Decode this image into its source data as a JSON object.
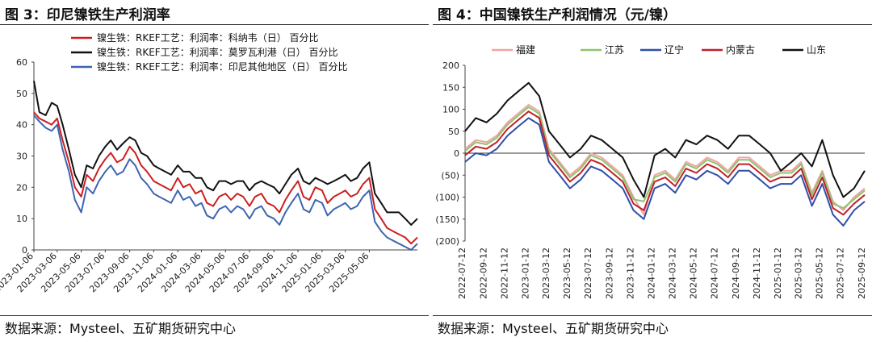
{
  "left": {
    "title": "图 3：印尼镍铁生产利润率",
    "source": "数据来源：Mysteel、五矿期货研究中心",
    "chart_data": {
      "type": "line",
      "ylim": [
        0,
        60
      ],
      "yticks": [
        0,
        10,
        20,
        30,
        40,
        50,
        60
      ],
      "xlim": [
        "2023-01-06",
        "2025-09-05"
      ],
      "xticks": [
        "2023-01-06",
        "2023-03-06",
        "2023-05-06",
        "2023-07-06",
        "2023-09-06",
        "2023-11-06",
        "2024-01-06",
        "2024-03-06",
        "2024-05-06",
        "2024-07-06",
        "2024-09-06",
        "2024-11-06",
        "2025-01-06",
        "2025-03-06",
        "2025-05-06"
      ],
      "legend_position": "top-left",
      "series": [
        {
          "name": "镍生铁：RKEF工艺：利润率：科纳韦（日） 百分比",
          "color": "#cc1f1f",
          "x": [
            "2023-01-06",
            "2023-01-20",
            "2023-02-05",
            "2023-02-20",
            "2023-03-06",
            "2023-03-20",
            "2023-04-05",
            "2023-04-20",
            "2023-05-06",
            "2023-05-20",
            "2023-06-05",
            "2023-06-20",
            "2023-07-06",
            "2023-07-20",
            "2023-08-05",
            "2023-08-20",
            "2023-09-06",
            "2023-09-20",
            "2023-10-05",
            "2023-10-20",
            "2023-11-06",
            "2023-11-20",
            "2023-12-05",
            "2023-12-20",
            "2024-01-06",
            "2024-01-20",
            "2024-02-05",
            "2024-02-20",
            "2024-03-06",
            "2024-03-20",
            "2024-04-05",
            "2024-04-20",
            "2024-05-06",
            "2024-05-20",
            "2024-06-05",
            "2024-06-20",
            "2024-07-06",
            "2024-07-20",
            "2024-08-05",
            "2024-08-20",
            "2024-09-06",
            "2024-09-20",
            "2024-10-05",
            "2024-10-20",
            "2024-11-06",
            "2024-11-20",
            "2024-12-05",
            "2024-12-20",
            "2025-01-06",
            "2025-01-20",
            "2025-02-05",
            "2025-02-20",
            "2025-03-06",
            "2025-03-20",
            "2025-04-05",
            "2025-04-20",
            "2025-05-06",
            "2025-05-20",
            "2025-06-05",
            "2025-06-20",
            "2025-07-05",
            "2025-07-20",
            "2025-08-05",
            "2025-08-20",
            "2025-09-05"
          ],
          "values": [
            44,
            42,
            41,
            40,
            42,
            35,
            28,
            20,
            17,
            24,
            22,
            26,
            29,
            31,
            28,
            29,
            33,
            31,
            27,
            25,
            22,
            21,
            20,
            19,
            23,
            20,
            21,
            18,
            19,
            15,
            14,
            17,
            18,
            16,
            18,
            17,
            14,
            17,
            18,
            15,
            14,
            12,
            16,
            19,
            22,
            17,
            16,
            20,
            19,
            15,
            17,
            18,
            19,
            17,
            18,
            21,
            23,
            13,
            10,
            7,
            6,
            5,
            4,
            2,
            4
          ]
        },
        {
          "name": "镍生铁：RKEF工艺：利润率：莫罗瓦利港（日） 百分比",
          "color": "#111111",
          "x": [
            "2023-01-06",
            "2023-01-20",
            "2023-02-05",
            "2023-02-20",
            "2023-03-06",
            "2023-03-20",
            "2023-04-05",
            "2023-04-20",
            "2023-05-06",
            "2023-05-20",
            "2023-06-05",
            "2023-06-20",
            "2023-07-06",
            "2023-07-20",
            "2023-08-05",
            "2023-08-20",
            "2023-09-06",
            "2023-09-20",
            "2023-10-05",
            "2023-10-20",
            "2023-11-06",
            "2023-11-20",
            "2023-12-05",
            "2023-12-20",
            "2024-01-06",
            "2024-01-20",
            "2024-02-05",
            "2024-02-20",
            "2024-03-06",
            "2024-03-20",
            "2024-04-05",
            "2024-04-20",
            "2024-05-06",
            "2024-05-20",
            "2024-06-05",
            "2024-06-20",
            "2024-07-06",
            "2024-07-20",
            "2024-08-05",
            "2024-08-20",
            "2024-09-06",
            "2024-09-20",
            "2024-10-05",
            "2024-10-20",
            "2024-11-06",
            "2024-11-20",
            "2024-12-05",
            "2024-12-20",
            "2025-01-06",
            "2025-01-20",
            "2025-02-05",
            "2025-02-20",
            "2025-03-06",
            "2025-03-20",
            "2025-04-05",
            "2025-04-20",
            "2025-05-06",
            "2025-05-20",
            "2025-06-05",
            "2025-06-20",
            "2025-07-05",
            "2025-07-20",
            "2025-08-05",
            "2025-08-20",
            "2025-09-05"
          ],
          "values": [
            54,
            44,
            43,
            47,
            46,
            40,
            32,
            24,
            20,
            27,
            26,
            30,
            33,
            35,
            32,
            34,
            36,
            35,
            31,
            30,
            27,
            26,
            25,
            24,
            27,
            25,
            25,
            23,
            23,
            20,
            19,
            22,
            22,
            21,
            22,
            22,
            19,
            21,
            22,
            21,
            20,
            18,
            21,
            24,
            26,
            22,
            21,
            23,
            22,
            21,
            22,
            23,
            24,
            22,
            23,
            26,
            28,
            18,
            15,
            12,
            12,
            12,
            10,
            8,
            10
          ]
        },
        {
          "name": "镍生铁：RKEF工艺：利润率：印尼其他地区（日） 百分比",
          "color": "#3e64b2",
          "x": [
            "2023-01-06",
            "2023-01-20",
            "2023-02-05",
            "2023-02-20",
            "2023-03-06",
            "2023-03-20",
            "2023-04-05",
            "2023-04-20",
            "2023-05-06",
            "2023-05-20",
            "2023-06-05",
            "2023-06-20",
            "2023-07-06",
            "2023-07-20",
            "2023-08-05",
            "2023-08-20",
            "2023-09-06",
            "2023-09-20",
            "2023-10-05",
            "2023-10-20",
            "2023-11-06",
            "2023-11-20",
            "2023-12-05",
            "2023-12-20",
            "2024-01-06",
            "2024-01-20",
            "2024-02-05",
            "2024-02-20",
            "2024-03-06",
            "2024-03-20",
            "2024-04-05",
            "2024-04-20",
            "2024-05-06",
            "2024-05-20",
            "2024-06-05",
            "2024-06-20",
            "2024-07-06",
            "2024-07-20",
            "2024-08-05",
            "2024-08-20",
            "2024-09-06",
            "2024-09-20",
            "2024-10-05",
            "2024-10-20",
            "2024-11-06",
            "2024-11-20",
            "2024-12-05",
            "2024-12-20",
            "2025-01-06",
            "2025-01-20",
            "2025-02-05",
            "2025-02-20",
            "2025-03-06",
            "2025-03-20",
            "2025-04-05",
            "2025-04-20",
            "2025-05-06",
            "2025-05-20",
            "2025-06-05",
            "2025-06-20",
            "2025-07-05",
            "2025-07-20",
            "2025-08-05",
            "2025-08-20",
            "2025-09-05"
          ],
          "values": [
            43,
            41,
            39,
            38,
            40,
            32,
            25,
            16,
            12,
            20,
            18,
            22,
            25,
            27,
            24,
            25,
            29,
            27,
            23,
            21,
            18,
            17,
            16,
            15,
            19,
            16,
            17,
            14,
            15,
            11,
            10,
            13,
            14,
            12,
            14,
            13,
            10,
            13,
            14,
            11,
            10,
            8,
            12,
            15,
            18,
            13,
            12,
            16,
            15,
            11,
            13,
            14,
            15,
            13,
            14,
            17,
            19,
            9,
            6,
            4,
            3,
            2,
            1,
            0,
            2
          ]
        }
      ]
    }
  },
  "right": {
    "title": "图 4：中国镍铁生产利润情况（元/镍）",
    "source": "数据来源：Mysteel、五矿期货研究中心",
    "chart_data": {
      "type": "line",
      "ylim": [
        -200,
        200
      ],
      "yticks": [
        200,
        150,
        100,
        50,
        0,
        -50,
        -100,
        -150,
        -200
      ],
      "ytick_labels": [
        "200",
        "150",
        "100",
        "50",
        "0",
        "(50)",
        "(100)",
        "(150)",
        "(200)"
      ],
      "xlim": [
        "2022-07-12",
        "2025-09-12"
      ],
      "xticks": [
        "2022-07-12",
        "2022-09-12",
        "2022-11-12",
        "2023-01-12",
        "2023-03-12",
        "2023-05-12",
        "2023-07-12",
        "2023-09-12",
        "2023-11-12",
        "2024-01-12",
        "2024-03-12",
        "2024-05-12",
        "2024-07-12",
        "2024-09-12",
        "2024-11-12",
        "2025-01-12",
        "2025-03-12",
        "2025-05-12",
        "2025-07-12",
        "2025-09-12"
      ],
      "legend_position": "top",
      "series": [
        {
          "name": "福建",
          "color": "#f2a3a3",
          "x": [
            "2022-07-12",
            "2022-08-12",
            "2022-09-12",
            "2022-10-12",
            "2022-11-12",
            "2022-12-12",
            "2023-01-12",
            "2023-02-12",
            "2023-03-12",
            "2023-04-12",
            "2023-05-12",
            "2023-06-12",
            "2023-07-12",
            "2023-08-12",
            "2023-09-12",
            "2023-10-12",
            "2023-11-12",
            "2023-12-12",
            "2024-01-12",
            "2024-02-12",
            "2024-03-12",
            "2024-04-12",
            "2024-05-12",
            "2024-06-12",
            "2024-07-12",
            "2024-08-12",
            "2024-09-12",
            "2024-10-12",
            "2024-11-12",
            "2024-12-12",
            "2025-01-12",
            "2025-02-12",
            "2025-03-12",
            "2025-04-12",
            "2025-05-12",
            "2025-06-12",
            "2025-07-12",
            "2025-08-12",
            "2025-09-12"
          ],
          "values": [
            10,
            30,
            25,
            40,
            70,
            90,
            110,
            95,
            10,
            -20,
            -50,
            -30,
            0,
            -10,
            -30,
            -50,
            -100,
            -140,
            -50,
            -40,
            -60,
            -20,
            -30,
            -10,
            -20,
            -40,
            -10,
            -10,
            -30,
            -50,
            -40,
            -40,
            -20,
            -90,
            -40,
            -110,
            -130,
            -100,
            -80
          ]
        },
        {
          "name": "江苏",
          "color": "#8dc46f",
          "x": [
            "2022-07-12",
            "2022-08-12",
            "2022-09-12",
            "2022-10-12",
            "2022-11-12",
            "2022-12-12",
            "2023-01-12",
            "2023-02-12",
            "2023-03-12",
            "2023-04-12",
            "2023-05-12",
            "2023-06-12",
            "2023-07-12",
            "2023-08-12",
            "2023-09-12",
            "2023-10-12",
            "2023-11-12",
            "2023-12-12",
            "2024-01-12",
            "2024-02-12",
            "2024-03-12",
            "2024-04-12",
            "2024-05-12",
            "2024-06-12",
            "2024-07-12",
            "2024-08-12",
            "2024-09-12",
            "2024-10-12",
            "2024-11-12",
            "2024-12-12",
            "2025-01-12",
            "2025-02-12",
            "2025-03-12",
            "2025-04-12",
            "2025-05-12",
            "2025-06-12",
            "2025-07-12",
            "2025-08-12",
            "2025-09-12"
          ],
          "values": [
            5,
            25,
            20,
            35,
            65,
            85,
            105,
            90,
            5,
            -25,
            -55,
            -35,
            -5,
            -15,
            -35,
            -55,
            -105,
            -110,
            -55,
            -45,
            -65,
            -25,
            -35,
            -15,
            -25,
            -45,
            -15,
            -15,
            -35,
            -55,
            -45,
            -45,
            -25,
            -95,
            -45,
            -115,
            -125,
            -105,
            -85
          ]
        },
        {
          "name": "辽宁",
          "color": "#2f4fa8",
          "x": [
            "2022-07-12",
            "2022-08-12",
            "2022-09-12",
            "2022-10-12",
            "2022-11-12",
            "2022-12-12",
            "2023-01-12",
            "2023-02-12",
            "2023-03-12",
            "2023-04-12",
            "2023-05-12",
            "2023-06-12",
            "2023-07-12",
            "2023-08-12",
            "2023-09-12",
            "2023-10-12",
            "2023-11-12",
            "2023-12-12",
            "2024-01-12",
            "2024-02-12",
            "2024-03-12",
            "2024-04-12",
            "2024-05-12",
            "2024-06-12",
            "2024-07-12",
            "2024-08-12",
            "2024-09-12",
            "2024-10-12",
            "2024-11-12",
            "2024-12-12",
            "2025-01-12",
            "2025-02-12",
            "2025-03-12",
            "2025-04-12",
            "2025-05-12",
            "2025-06-12",
            "2025-07-12",
            "2025-08-12",
            "2025-09-12"
          ],
          "values": [
            -20,
            0,
            -5,
            10,
            40,
            60,
            80,
            65,
            -20,
            -50,
            -80,
            -60,
            -30,
            -40,
            -60,
            -80,
            -130,
            -150,
            -80,
            -70,
            -90,
            -50,
            -60,
            -40,
            -50,
            -70,
            -40,
            -40,
            -60,
            -80,
            -70,
            -70,
            -50,
            -120,
            -70,
            -140,
            -165,
            -130,
            -110
          ]
        },
        {
          "name": "内蒙古",
          "color": "#c0202a",
          "x": [
            "2022-07-12",
            "2022-08-12",
            "2022-09-12",
            "2022-10-12",
            "2022-11-12",
            "2022-12-12",
            "2023-01-12",
            "2023-02-12",
            "2023-03-12",
            "2023-04-12",
            "2023-05-12",
            "2023-06-12",
            "2023-07-12",
            "2023-08-12",
            "2023-09-12",
            "2023-10-12",
            "2023-11-12",
            "2023-12-12",
            "2024-01-12",
            "2024-02-12",
            "2024-03-12",
            "2024-04-12",
            "2024-05-12",
            "2024-06-12",
            "2024-07-12",
            "2024-08-12",
            "2024-09-12",
            "2024-10-12",
            "2024-11-12",
            "2024-12-12",
            "2025-01-12",
            "2025-02-12",
            "2025-03-12",
            "2025-04-12",
            "2025-05-12",
            "2025-06-12",
            "2025-07-12",
            "2025-08-12",
            "2025-09-12"
          ],
          "values": [
            -5,
            15,
            10,
            25,
            55,
            75,
            95,
            80,
            -5,
            -35,
            -65,
            -45,
            -15,
            -25,
            -45,
            -65,
            -115,
            -130,
            -65,
            -55,
            -75,
            -35,
            -45,
            -25,
            -35,
            -55,
            -25,
            -25,
            -45,
            -65,
            -55,
            -55,
            -35,
            -105,
            -55,
            -125,
            -140,
            -115,
            -95
          ]
        },
        {
          "name": "山东",
          "color": "#111111",
          "x": [
            "2022-07-12",
            "2022-08-12",
            "2022-09-12",
            "2022-10-12",
            "2022-11-12",
            "2022-12-12",
            "2023-01-12",
            "2023-02-12",
            "2023-03-12",
            "2023-04-12",
            "2023-05-12",
            "2023-06-12",
            "2023-07-12",
            "2023-08-12",
            "2023-09-12",
            "2023-10-12",
            "2023-11-12",
            "2023-12-12",
            "2024-01-12",
            "2024-02-12",
            "2024-03-12",
            "2024-04-12",
            "2024-05-12",
            "2024-06-12",
            "2024-07-12",
            "2024-08-12",
            "2024-09-12",
            "2024-10-12",
            "2024-11-12",
            "2024-12-12",
            "2025-01-12",
            "2025-02-12",
            "2025-03-12",
            "2025-04-12",
            "2025-05-12",
            "2025-06-12",
            "2025-07-12",
            "2025-08-12",
            "2025-09-12"
          ],
          "values": [
            50,
            80,
            70,
            90,
            120,
            140,
            160,
            130,
            50,
            20,
            -10,
            10,
            40,
            30,
            10,
            -10,
            -60,
            -100,
            -5,
            10,
            -10,
            30,
            20,
            40,
            30,
            10,
            40,
            40,
            20,
            0,
            -40,
            -20,
            0,
            -30,
            30,
            -50,
            -100,
            -80,
            -40
          ]
        }
      ]
    }
  }
}
